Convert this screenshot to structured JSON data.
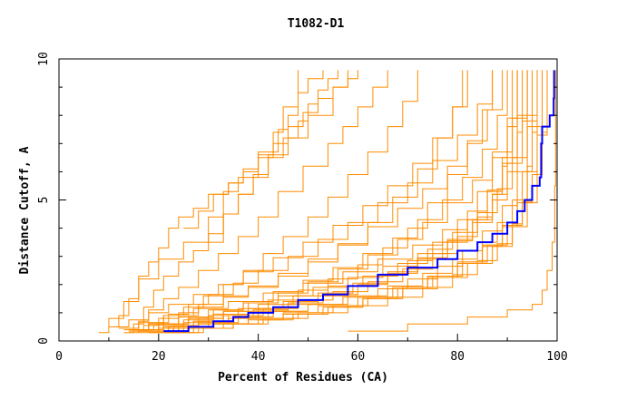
{
  "chart_data": {
    "type": "line",
    "title": "T1082-D1",
    "xlabel": "Percent of Residues (CA)",
    "ylabel": "Distance Cutoff, A",
    "xlim": [
      0,
      100
    ],
    "ylim": [
      0,
      10
    ],
    "xticks": [
      "0",
      "20",
      "40",
      "60",
      "80",
      "100"
    ],
    "yticks": [
      "0",
      "5",
      "10"
    ],
    "grid": false,
    "colors": {
      "background_series": "#ff8c00",
      "highlight_series": "#0000ff"
    },
    "highlight_series": {
      "x": [
        21,
        26,
        31,
        35,
        38,
        43,
        48,
        53,
        58,
        64,
        70,
        76,
        80,
        84,
        87,
        90,
        92,
        93.5,
        95,
        96.5,
        96.8,
        97,
        98.5,
        99.3,
        99.4
      ],
      "y": [
        0.35,
        0.5,
        0.7,
        0.85,
        1.0,
        1.2,
        1.45,
        1.65,
        1.95,
        2.35,
        2.6,
        2.9,
        3.2,
        3.5,
        3.8,
        4.2,
        4.6,
        5.0,
        5.5,
        5.8,
        7.0,
        7.6,
        8.0,
        8.6,
        9.6
      ]
    },
    "background_series": [
      {
        "x": [
          8,
          10,
          13,
          16,
          20,
          25,
          30,
          33,
          36,
          40,
          44,
          46,
          48,
          50,
          53
        ],
        "y": [
          0.3,
          0.8,
          1.4,
          2.2,
          2.9,
          3.5,
          4.4,
          5.3,
          5.8,
          6.7,
          7.5,
          8.0,
          8.8,
          9.3,
          9.6
        ]
      },
      {
        "x": [
          10,
          12,
          14,
          16,
          18,
          20,
          22,
          24,
          27,
          30,
          34,
          37,
          40,
          43,
          45,
          48
        ],
        "y": [
          0.5,
          0.9,
          1.5,
          2.3,
          2.8,
          3.3,
          4.0,
          4.4,
          4.7,
          5.2,
          5.6,
          6.1,
          6.6,
          7.4,
          8.3,
          9.6
        ]
      },
      {
        "x": [
          13,
          15,
          17,
          19,
          21,
          24,
          27,
          30,
          33,
          36,
          39,
          42,
          46,
          50,
          55,
          58
        ],
        "y": [
          0.3,
          0.6,
          1.2,
          1.8,
          2.3,
          2.8,
          3.2,
          3.8,
          4.5,
          5.2,
          5.9,
          6.6,
          7.2,
          8.0,
          9.0,
          9.6
        ]
      },
      {
        "x": [
          14,
          16,
          18,
          21,
          24,
          28,
          32,
          36,
          40,
          44,
          49,
          54,
          57,
          60,
          63,
          66
        ],
        "y": [
          0.3,
          0.7,
          1.1,
          1.5,
          1.9,
          2.5,
          3.1,
          3.7,
          4.4,
          5.3,
          6.2,
          7.0,
          7.6,
          8.3,
          9.0,
          9.6
        ]
      },
      {
        "x": [
          15,
          18,
          21,
          25,
          29,
          33,
          37,
          41,
          45,
          50,
          54,
          58,
          62,
          66,
          69,
          72
        ],
        "y": [
          0.4,
          0.6,
          0.9,
          1.2,
          1.6,
          2.0,
          2.5,
          3.1,
          3.7,
          4.4,
          5.1,
          5.9,
          6.7,
          7.6,
          8.5,
          9.6
        ]
      },
      {
        "x": [
          14,
          17,
          20,
          24,
          28,
          33,
          38,
          44,
          50,
          56,
          62,
          67,
          72,
          76,
          79,
          81
        ],
        "y": [
          0.35,
          0.55,
          0.8,
          1.0,
          1.3,
          1.6,
          1.9,
          2.3,
          2.8,
          3.4,
          4.2,
          5.1,
          6.1,
          7.2,
          8.3,
          9.6
        ]
      },
      {
        "x": [
          16,
          20,
          25,
          30,
          36,
          42,
          48,
          54,
          60,
          65,
          70,
          74,
          78,
          82,
          85,
          87
        ],
        "y": [
          0.3,
          0.45,
          0.65,
          0.9,
          1.15,
          1.45,
          1.8,
          2.2,
          2.7,
          3.3,
          4.0,
          4.9,
          5.9,
          7.0,
          8.2,
          9.6
        ]
      },
      {
        "x": [
          18,
          23,
          28,
          34,
          40,
          46,
          52,
          58,
          64,
          70,
          75,
          80,
          84,
          87,
          90,
          92
        ],
        "y": [
          0.3,
          0.45,
          0.6,
          0.8,
          1.05,
          1.3,
          1.6,
          1.95,
          2.35,
          2.85,
          3.5,
          4.3,
          5.3,
          6.5,
          7.9,
          9.6
        ]
      },
      {
        "x": [
          16,
          21,
          27,
          33,
          39,
          46,
          53,
          60,
          66,
          72,
          77,
          82,
          86,
          89,
          92,
          94
        ],
        "y": [
          0.35,
          0.5,
          0.7,
          0.9,
          1.1,
          1.35,
          1.65,
          2.0,
          2.4,
          2.9,
          3.5,
          4.3,
          5.3,
          6.5,
          8.0,
          9.6
        ]
      },
      {
        "x": [
          14,
          19,
          25,
          31,
          38,
          45,
          52,
          59,
          66,
          72,
          78,
          83,
          87,
          90,
          93,
          95
        ],
        "y": [
          0.4,
          0.55,
          0.75,
          0.95,
          1.15,
          1.4,
          1.7,
          2.05,
          2.45,
          2.95,
          3.55,
          4.3,
          5.2,
          6.3,
          7.8,
          9.6
        ]
      },
      {
        "x": [
          19,
          24,
          30,
          36,
          43,
          50,
          57,
          64,
          70,
          76,
          81,
          85,
          89,
          92,
          94,
          96
        ],
        "y": [
          0.35,
          0.5,
          0.65,
          0.85,
          1.05,
          1.3,
          1.55,
          1.85,
          2.2,
          2.65,
          3.2,
          3.9,
          4.8,
          6.0,
          7.6,
          9.6
        ]
      },
      {
        "x": [
          15,
          20,
          26,
          33,
          40,
          47,
          54,
          61,
          68,
          74,
          79,
          84,
          88,
          91,
          94,
          96
        ],
        "y": [
          0.4,
          0.6,
          0.8,
          1.05,
          1.3,
          1.6,
          1.95,
          2.3,
          2.75,
          3.25,
          3.85,
          4.55,
          5.4,
          6.5,
          8.0,
          9.6
        ]
      },
      {
        "x": [
          20,
          25,
          31,
          38,
          45,
          52,
          60,
          67,
          74,
          80,
          85,
          89,
          92,
          94,
          95,
          96
        ],
        "y": [
          0.3,
          0.45,
          0.6,
          0.8,
          1.0,
          1.25,
          1.55,
          1.9,
          2.3,
          2.8,
          3.4,
          4.1,
          5.0,
          6.2,
          7.8,
          9.6
        ]
      },
      {
        "x": [
          17,
          22,
          28,
          34,
          41,
          48,
          55,
          62,
          69,
          75,
          80,
          84,
          87,
          89,
          90,
          91
        ],
        "y": [
          0.35,
          0.5,
          0.7,
          0.9,
          1.15,
          1.45,
          1.75,
          2.1,
          2.55,
          3.1,
          3.7,
          4.4,
          5.2,
          6.2,
          7.6,
          9.6
        ]
      },
      {
        "x": [
          13,
          18,
          24,
          30,
          37,
          44,
          51,
          58,
          65,
          72,
          78,
          83,
          87,
          90,
          92,
          93
        ],
        "y": [
          0.4,
          0.6,
          0.85,
          1.1,
          1.35,
          1.6,
          1.9,
          2.25,
          2.65,
          3.1,
          3.6,
          4.2,
          5.0,
          6.0,
          7.4,
          9.6
        ]
      },
      {
        "x": [
          21,
          27,
          33,
          40,
          47,
          54,
          61,
          68,
          74,
          80,
          85,
          89,
          92,
          94,
          96,
          97
        ],
        "y": [
          0.3,
          0.45,
          0.6,
          0.75,
          0.95,
          1.2,
          1.5,
          1.85,
          2.25,
          2.75,
          3.35,
          4.05,
          4.9,
          6.0,
          7.6,
          9.6
        ]
      },
      {
        "x": [
          16,
          22,
          28,
          35,
          42,
          50,
          58,
          66,
          73,
          79,
          84,
          88,
          91,
          93,
          95,
          96
        ],
        "y": [
          0.35,
          0.5,
          0.65,
          0.85,
          1.05,
          1.3,
          1.6,
          1.95,
          2.4,
          2.9,
          3.5,
          4.2,
          5.0,
          6.0,
          7.4,
          9.6
        ]
      },
      {
        "x": [
          18,
          24,
          31,
          38,
          45,
          53,
          61,
          69,
          76,
          82,
          87,
          91,
          94,
          96,
          97,
          98
        ],
        "y": [
          0.3,
          0.45,
          0.6,
          0.75,
          0.95,
          1.2,
          1.5,
          1.85,
          2.25,
          2.75,
          3.35,
          4.05,
          4.9,
          5.9,
          7.4,
          9.6
        ]
      },
      {
        "x": [
          12,
          16,
          21,
          27,
          34,
          41,
          49,
          57,
          64,
          71,
          77,
          82,
          86,
          89,
          91,
          92
        ],
        "y": [
          0.45,
          0.65,
          0.9,
          1.15,
          1.4,
          1.7,
          2.05,
          2.45,
          2.9,
          3.4,
          3.95,
          4.6,
          5.35,
          6.3,
          7.6,
          9.6
        ]
      },
      {
        "x": [
          22,
          28,
          35,
          42,
          50,
          58,
          66,
          73,
          79,
          84,
          88,
          91,
          93,
          95,
          96,
          97
        ],
        "y": [
          0.3,
          0.45,
          0.6,
          0.8,
          1.0,
          1.25,
          1.55,
          1.9,
          2.35,
          2.85,
          3.45,
          4.15,
          4.95,
          5.9,
          7.3,
          9.6
        ]
      },
      {
        "x": [
          14,
          18,
          22,
          26,
          30,
          35,
          40,
          46,
          52,
          58,
          64,
          70,
          75,
          80,
          84,
          87
        ],
        "y": [
          0.4,
          0.65,
          0.95,
          1.3,
          1.65,
          2.05,
          2.5,
          3.0,
          3.6,
          4.2,
          4.9,
          5.6,
          6.4,
          7.3,
          8.4,
          9.6
        ]
      },
      {
        "x": [
          16,
          20,
          24,
          28,
          33,
          38,
          44,
          50,
          56,
          62,
          68,
          73,
          78,
          82,
          86,
          89
        ],
        "y": [
          0.35,
          0.6,
          0.9,
          1.2,
          1.55,
          1.95,
          2.4,
          2.9,
          3.45,
          4.05,
          4.7,
          5.4,
          6.2,
          7.1,
          8.2,
          9.6
        ]
      },
      {
        "x": [
          11,
          14,
          18,
          22,
          27,
          32,
          37,
          43,
          49,
          55,
          61,
          66,
          71,
          75,
          79,
          82
        ],
        "y": [
          0.5,
          0.75,
          1.0,
          1.3,
          1.65,
          2.0,
          2.45,
          2.95,
          3.5,
          4.1,
          4.8,
          5.5,
          6.3,
          7.2,
          8.3,
          9.6
        ]
      },
      {
        "x": [
          19,
          23,
          28,
          33,
          38,
          44,
          50,
          56,
          62,
          68,
          73,
          78,
          83,
          87,
          91,
          94
        ],
        "y": [
          0.35,
          0.55,
          0.8,
          1.05,
          1.35,
          1.7,
          2.1,
          2.55,
          3.05,
          3.6,
          4.2,
          4.9,
          5.7,
          6.7,
          7.9,
          9.6
        ]
      },
      {
        "x": [
          24,
          29,
          35,
          41,
          48,
          55,
          62,
          69,
          75,
          81,
          86,
          90,
          93,
          95,
          97,
          98
        ],
        "y": [
          0.3,
          0.45,
          0.6,
          0.8,
          1.0,
          1.25,
          1.55,
          1.9,
          2.3,
          2.8,
          3.4,
          4.1,
          4.9,
          5.9,
          7.3,
          9.6
        ]
      },
      {
        "x": [
          17,
          21,
          26,
          31,
          37,
          43,
          49,
          55,
          61,
          67,
          72,
          77,
          81,
          85,
          88,
          90
        ],
        "y": [
          0.4,
          0.6,
          0.85,
          1.1,
          1.4,
          1.75,
          2.15,
          2.6,
          3.1,
          3.65,
          4.3,
          5.0,
          5.8,
          6.8,
          8.0,
          9.6
        ]
      },
      {
        "x": [
          58,
          70,
          82,
          90,
          95,
          97,
          98,
          99,
          99.5,
          99.7
        ],
        "y": [
          0.35,
          0.6,
          0.85,
          1.1,
          1.3,
          1.8,
          2.5,
          3.5,
          5.5,
          9.6
        ]
      },
      {
        "x": [
          30,
          33,
          36,
          39,
          42,
          45,
          48,
          50,
          52,
          54,
          56
        ],
        "y": [
          3.5,
          4.5,
          5.2,
          5.8,
          6.5,
          7.2,
          7.8,
          8.4,
          8.9,
          9.3,
          9.6
        ]
      },
      {
        "x": [
          25,
          28,
          31,
          34,
          37,
          40,
          43,
          46,
          49,
          52,
          55,
          58,
          60
        ],
        "y": [
          4.0,
          4.6,
          5.2,
          5.6,
          6.0,
          6.5,
          7.0,
          7.6,
          8.1,
          8.6,
          9.0,
          9.3,
          9.6
        ]
      }
    ]
  }
}
